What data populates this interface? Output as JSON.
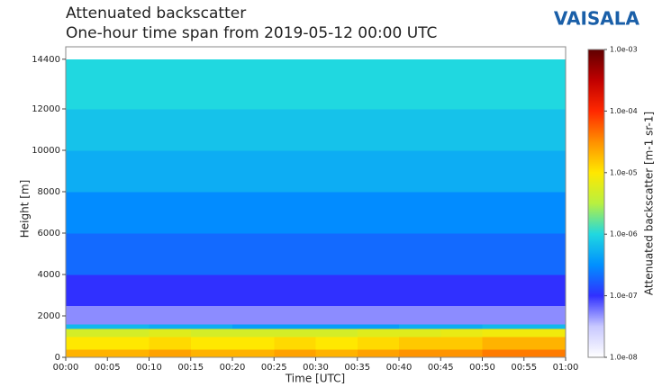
{
  "chart_data": {
    "type": "heatmap",
    "title": "Attenuated backscatter",
    "subtitle": "One-hour time span from 2019-05-12 00:00 UTC",
    "logo": "VAISALA",
    "xlabel": "Time [UTC]",
    "ylabel": "Height [m]",
    "colorbar_label": "Attenuated backscatter [m-1 sr-1]",
    "x_bins": [
      0,
      5,
      10,
      15,
      20,
      25,
      30,
      35,
      40,
      45,
      50,
      55,
      60
    ],
    "y_bins": [
      0,
      400,
      1000,
      1400,
      1600,
      2500,
      4000,
      6000,
      8000,
      10000,
      12000,
      14400
    ],
    "values": [
      [
        2e-05,
        2e-05,
        2.5e-05,
        2e-05,
        2e-05,
        2.5e-05,
        2e-05,
        2.5e-05,
        3e-05,
        3e-05,
        4e-05,
        4e-05
      ],
      [
        1e-05,
        1e-05,
        1.2e-05,
        1e-05,
        1e-05,
        1.2e-05,
        1e-05,
        1.2e-05,
        1.5e-05,
        1.5e-05,
        2e-05,
        2e-05
      ],
      [
        5e-06,
        5e-06,
        6e-06,
        5e-06,
        5e-06,
        5e-06,
        5e-06,
        6e-06,
        6e-06,
        7e-06,
        8e-06,
        8e-06
      ],
      [
        6e-07,
        6e-07,
        5e-07,
        5e-07,
        4e-07,
        4e-07,
        4e-07,
        4e-07,
        5e-07,
        5e-07,
        6e-07,
        6e-07
      ],
      [
        5e-08,
        5e-08,
        5e-08,
        5e-08,
        5e-08,
        5e-08,
        5e-08,
        5e-08,
        5e-08,
        5e-08,
        5e-08,
        5e-08
      ],
      [
        1e-07,
        1e-07,
        1e-07,
        1e-07,
        1e-07,
        1e-07,
        1e-07,
        1e-07,
        1e-07,
        1e-07,
        1e-07,
        1e-07
      ],
      [
        2e-07,
        2e-07,
        2e-07,
        2e-07,
        2e-07,
        2e-07,
        2e-07,
        2e-07,
        2e-07,
        2e-07,
        2e-07,
        2e-07
      ],
      [
        3e-07,
        3e-07,
        3e-07,
        3e-07,
        3e-07,
        3e-07,
        3e-07,
        3e-07,
        3e-07,
        3e-07,
        3e-07,
        3e-07
      ],
      [
        5e-07,
        5e-07,
        5e-07,
        5e-07,
        5e-07,
        5e-07,
        5e-07,
        5e-07,
        5e-07,
        5e-07,
        5e-07,
        5e-07
      ],
      [
        7e-07,
        7e-07,
        7e-07,
        7e-07,
        7e-07,
        7e-07,
        7e-07,
        7e-07,
        7e-07,
        7e-07,
        7e-07,
        7e-07
      ],
      [
        1e-06,
        1e-06,
        1e-06,
        1e-06,
        1e-06,
        1e-06,
        1e-06,
        1e-06,
        1e-06,
        1e-06,
        1e-06,
        1e-06
      ]
    ],
    "xlim": [
      0,
      60
    ],
    "xticks": [
      {
        "value": 0,
        "label": "00:00"
      },
      {
        "value": 5,
        "label": "00:05"
      },
      {
        "value": 10,
        "label": "00:10"
      },
      {
        "value": 15,
        "label": "00:15"
      },
      {
        "value": 20,
        "label": "00:20"
      },
      {
        "value": 25,
        "label": "00:25"
      },
      {
        "value": 30,
        "label": "00:30"
      },
      {
        "value": 35,
        "label": "00:35"
      },
      {
        "value": 40,
        "label": "00:40"
      },
      {
        "value": 45,
        "label": "00:45"
      },
      {
        "value": 50,
        "label": "00:50"
      },
      {
        "value": 55,
        "label": "00:55"
      },
      {
        "value": 60,
        "label": "01:00"
      }
    ],
    "ylim": [
      0,
      15000
    ],
    "yticks": [
      0,
      2000,
      4000,
      6000,
      8000,
      10000,
      12000,
      14400
    ],
    "clim": [
      1e-08,
      0.001
    ],
    "cticks": [
      {
        "value": 1e-08,
        "label": "1.0e-08"
      },
      {
        "value": 1e-07,
        "label": "1.0e-07"
      },
      {
        "value": 1e-06,
        "label": "1.0e-06"
      },
      {
        "value": 1e-05,
        "label": "1.0e-05"
      },
      {
        "value": 0.0001,
        "label": "1.0e-04"
      },
      {
        "value": 0.001,
        "label": "1.0e-03"
      }
    ],
    "color_scale": "log",
    "colormap": [
      "#ffffff",
      "#c8c8ff",
      "#3030ff",
      "#0090ff",
      "#20d8e0",
      "#b8f040",
      "#ffe800",
      "#ff9000",
      "#ff2800",
      "#c00000",
      "#600000"
    ]
  }
}
